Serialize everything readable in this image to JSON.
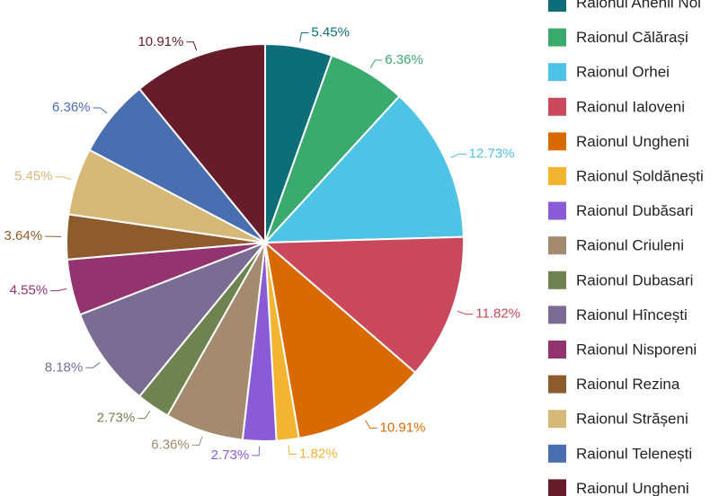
{
  "chart_data": {
    "type": "pie",
    "categories": [
      "Raionul Anenii Noi",
      "Raionul Călărași",
      "Raionul Orhei",
      "Raionul Ialoveni",
      "Raionul Ungheni",
      "Raionul Șoldănești",
      "Raionul Dubăsari",
      "Raionul Criuleni",
      "Raionul Dubasari",
      "Raionul Hîncești",
      "Raionul Nisporeni",
      "Raionul Rezina",
      "Raionul Strășeni",
      "Raionul Telenești",
      "Raionul Ungheni"
    ],
    "values": [
      5.45,
      6.36,
      12.73,
      11.82,
      10.91,
      1.82,
      2.73,
      6.36,
      2.73,
      8.18,
      4.55,
      3.64,
      5.45,
      6.36,
      10.91
    ],
    "value_labels": [
      "5.45%",
      "6.36%",
      "12.73%",
      "11.82%",
      "10.91%",
      "1.82%",
      "2.73%",
      "6.36%",
      "2.73%",
      "8.18%",
      "4.55%",
      "3.64%",
      "5.45%",
      "6.36%",
      "10.91%"
    ],
    "colors": [
      "#0e6e78",
      "#3aaa6e",
      "#4fc3e6",
      "#c9485b",
      "#d96a00",
      "#f3b531",
      "#8a5bd6",
      "#a48a6e",
      "#6e8350",
      "#7b6c93",
      "#93336f",
      "#8e5b2d",
      "#d6b877",
      "#4a6fb0",
      "#661c2a"
    ],
    "legend": "right"
  }
}
